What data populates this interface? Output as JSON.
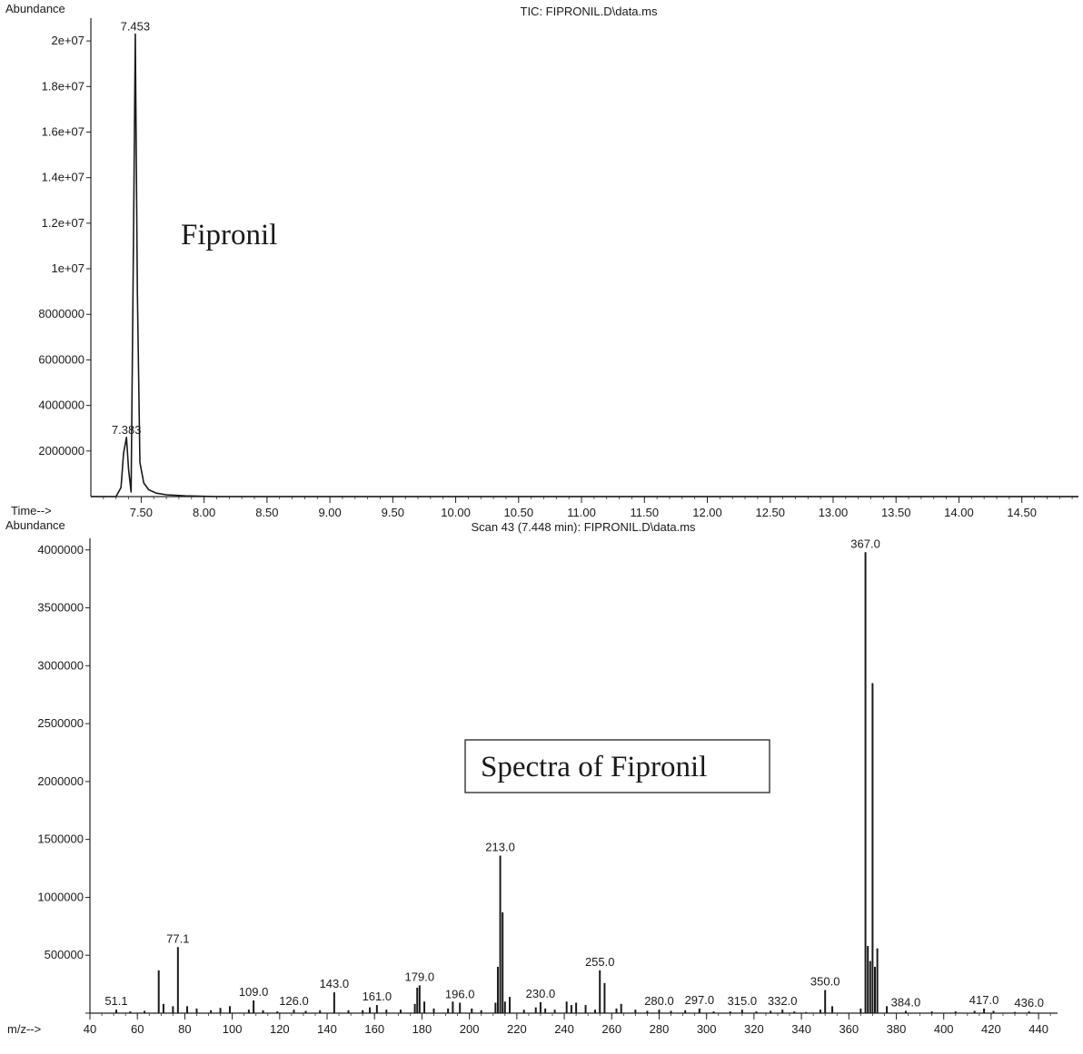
{
  "chart_data": [
    {
      "type": "line",
      "title": "TIC: FIPRONIL.D\\data.ms",
      "ylabel": "Abundance",
      "xlabel": "Time-->",
      "xlim": [
        7.1,
        14.95
      ],
      "ylim": [
        0,
        21000000
      ],
      "x_ticks": [
        "7.50",
        "8.00",
        "8.50",
        "9.00",
        "9.50",
        "10.00",
        "10.50",
        "11.00",
        "11.50",
        "12.00",
        "12.50",
        "13.00",
        "13.50",
        "14.00",
        "14.50"
      ],
      "y_ticks": [
        "2000000",
        "4000000",
        "6000000",
        "8000000",
        "1e+07",
        "1.2e+07",
        "1.4e+07",
        "1.6e+07",
        "1.8e+07",
        "2e+07"
      ],
      "annotation": "Fipronil",
      "series": [
        {
          "x": [
            7.1,
            7.3,
            7.34,
            7.36,
            7.383,
            7.4,
            7.42,
            7.44,
            7.453,
            7.47,
            7.49,
            7.52,
            7.56,
            7.62,
            7.7,
            7.85,
            8.1,
            14.95
          ],
          "y": [
            0,
            0,
            400000,
            1900000,
            2600000,
            1200000,
            200000,
            12000000,
            20300000,
            9000000,
            1500000,
            600000,
            300000,
            150000,
            80000,
            30000,
            0,
            0
          ]
        }
      ],
      "peak_labels": [
        {
          "x": 7.453,
          "y": 20300000,
          "text": "7.453"
        },
        {
          "x": 7.383,
          "y": 2600000,
          "text": "7.383"
        }
      ]
    },
    {
      "type": "bar",
      "title": "Scan 43 (7.448 min): FIPRONIL.D\\data.ms",
      "ylabel": "Abundance",
      "xlabel": "m/z-->",
      "xlim": [
        40,
        448
      ],
      "ylim": [
        0,
        4100000
      ],
      "x_ticks": [
        "40",
        "60",
        "80",
        "100",
        "120",
        "140",
        "160",
        "180",
        "200",
        "220",
        "240",
        "260",
        "280",
        "300",
        "320",
        "340",
        "360",
        "380",
        "400",
        "420",
        "440"
      ],
      "y_ticks": [
        "500000",
        "1000000",
        "1500000",
        "2000000",
        "2500000",
        "3000000",
        "3500000",
        "4000000"
      ],
      "annotation": "Spectra of Fipronil",
      "x": [
        51.1,
        57,
        63,
        69,
        71,
        75,
        77.1,
        81,
        85,
        91,
        95,
        99,
        107,
        109.0,
        113,
        119,
        126.0,
        131,
        137,
        143.0,
        149,
        155,
        158,
        161.0,
        165,
        171,
        177,
        178,
        179.0,
        181,
        185,
        191,
        193,
        196.0,
        201,
        205,
        211,
        212,
        213.0,
        214,
        215,
        217,
        223,
        228,
        230.0,
        232,
        236,
        241,
        243,
        245,
        249,
        253,
        255.0,
        257,
        262,
        264,
        270,
        275,
        280.0,
        285,
        291,
        297.0,
        303,
        310,
        315.0,
        321,
        327,
        332.0,
        337,
        342,
        348,
        350.0,
        353,
        365,
        367.0,
        368,
        369,
        370,
        371,
        372,
        376,
        384.0,
        395,
        405,
        413,
        417.0,
        421,
        430,
        436.0
      ],
      "values": [
        30000,
        15000,
        20000,
        370000,
        80000,
        60000,
        570000,
        60000,
        40000,
        25000,
        45000,
        60000,
        30000,
        110000,
        25000,
        15000,
        30000,
        20000,
        25000,
        180000,
        25000,
        25000,
        50000,
        70000,
        30000,
        30000,
        80000,
        220000,
        240000,
        100000,
        40000,
        40000,
        100000,
        90000,
        40000,
        25000,
        90000,
        400000,
        1360000,
        870000,
        100000,
        140000,
        30000,
        50000,
        95000,
        40000,
        30000,
        100000,
        70000,
        90000,
        70000,
        30000,
        370000,
        260000,
        40000,
        80000,
        30000,
        20000,
        30000,
        20000,
        25000,
        40000,
        15000,
        15000,
        30000,
        15000,
        20000,
        30000,
        15000,
        10000,
        30000,
        200000,
        60000,
        40000,
        3980000,
        580000,
        450000,
        2850000,
        400000,
        560000,
        60000,
        20000,
        15000,
        15000,
        20000,
        40000,
        20000,
        10000,
        15000
      ],
      "peak_labels": [
        {
          "x": 51.1,
          "text": "51.1"
        },
        {
          "x": 77.1,
          "text": "77.1"
        },
        {
          "x": 109.0,
          "text": "109.0"
        },
        {
          "x": 126.0,
          "text": "126.0"
        },
        {
          "x": 143.0,
          "text": "143.0"
        },
        {
          "x": 161.0,
          "text": "161.0"
        },
        {
          "x": 179.0,
          "text": "179.0"
        },
        {
          "x": 196.0,
          "text": "196.0"
        },
        {
          "x": 213.0,
          "text": "213.0"
        },
        {
          "x": 230.0,
          "text": "230.0"
        },
        {
          "x": 255.0,
          "text": "255.0"
        },
        {
          "x": 280.0,
          "text": "280.0"
        },
        {
          "x": 297.0,
          "text": "297.0"
        },
        {
          "x": 315.0,
          "text": "315.0"
        },
        {
          "x": 332.0,
          "text": "332.0"
        },
        {
          "x": 350.0,
          "text": "350.0"
        },
        {
          "x": 367.0,
          "text": "367.0"
        },
        {
          "x": 384.0,
          "text": "384.0"
        },
        {
          "x": 417.0,
          "text": "417.0"
        },
        {
          "x": 436.0,
          "text": "436.0"
        }
      ]
    }
  ]
}
